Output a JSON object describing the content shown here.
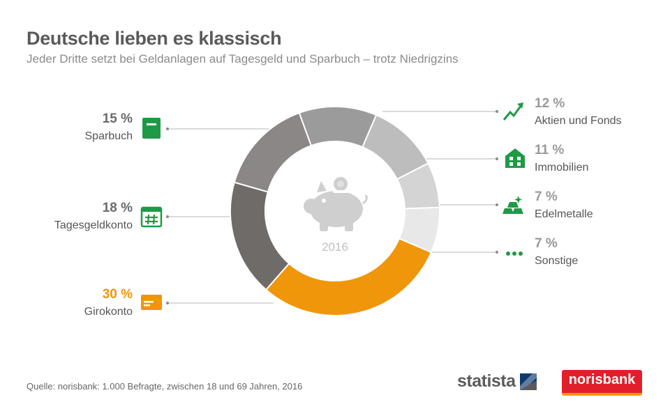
{
  "title": "Deutsche lieben es klassisch",
  "subtitle": "Jeder Dritte setzt bei Geldanlagen auf Tagesgeld und Sparbuch – trotz Niedrigzins",
  "center_label": "2016",
  "source": "Quelle: norisbank: 1.000 Befragte, zwischen 18 und 69 Jahren, 2016",
  "logos": {
    "statista": "statista",
    "norisbank": "norisbank"
  },
  "colors": {
    "accent": "#f0960a",
    "icon_green": "#1e9a46",
    "statista_blue": "#0a3a6e",
    "norisbank_red": "#e11f2a"
  },
  "chart_data": {
    "type": "pie",
    "style": "donut",
    "slices": [
      {
        "label": "Aktien und Fonds",
        "pct_label": "12 %",
        "value": 12,
        "color": "#9b9b9b",
        "icon": "trend-up-icon"
      },
      {
        "label": "Immobilien",
        "pct_label": "11 %",
        "value": 11,
        "color": "#bdbdbd",
        "icon": "house-icon"
      },
      {
        "label": "Edelmetalle",
        "pct_label": "7 %",
        "value": 7,
        "color": "#d4d4d4",
        "icon": "gold-bars-icon"
      },
      {
        "label": "Sonstige",
        "pct_label": "7 %",
        "value": 7,
        "color": "#e8e8e8",
        "icon": "dots-icon"
      },
      {
        "label": "Girokonto",
        "pct_label": "30 %",
        "value": 30,
        "color": "#f0960a",
        "icon": "card-icon"
      },
      {
        "label": "Tagesgeldkonto",
        "pct_label": "18 %",
        "value": 18,
        "color": "#6f6b69",
        "icon": "calendar-icon"
      },
      {
        "label": "Sparbuch",
        "pct_label": "15 %",
        "value": 15,
        "color": "#8a8786",
        "icon": "book-icon"
      }
    ]
  }
}
